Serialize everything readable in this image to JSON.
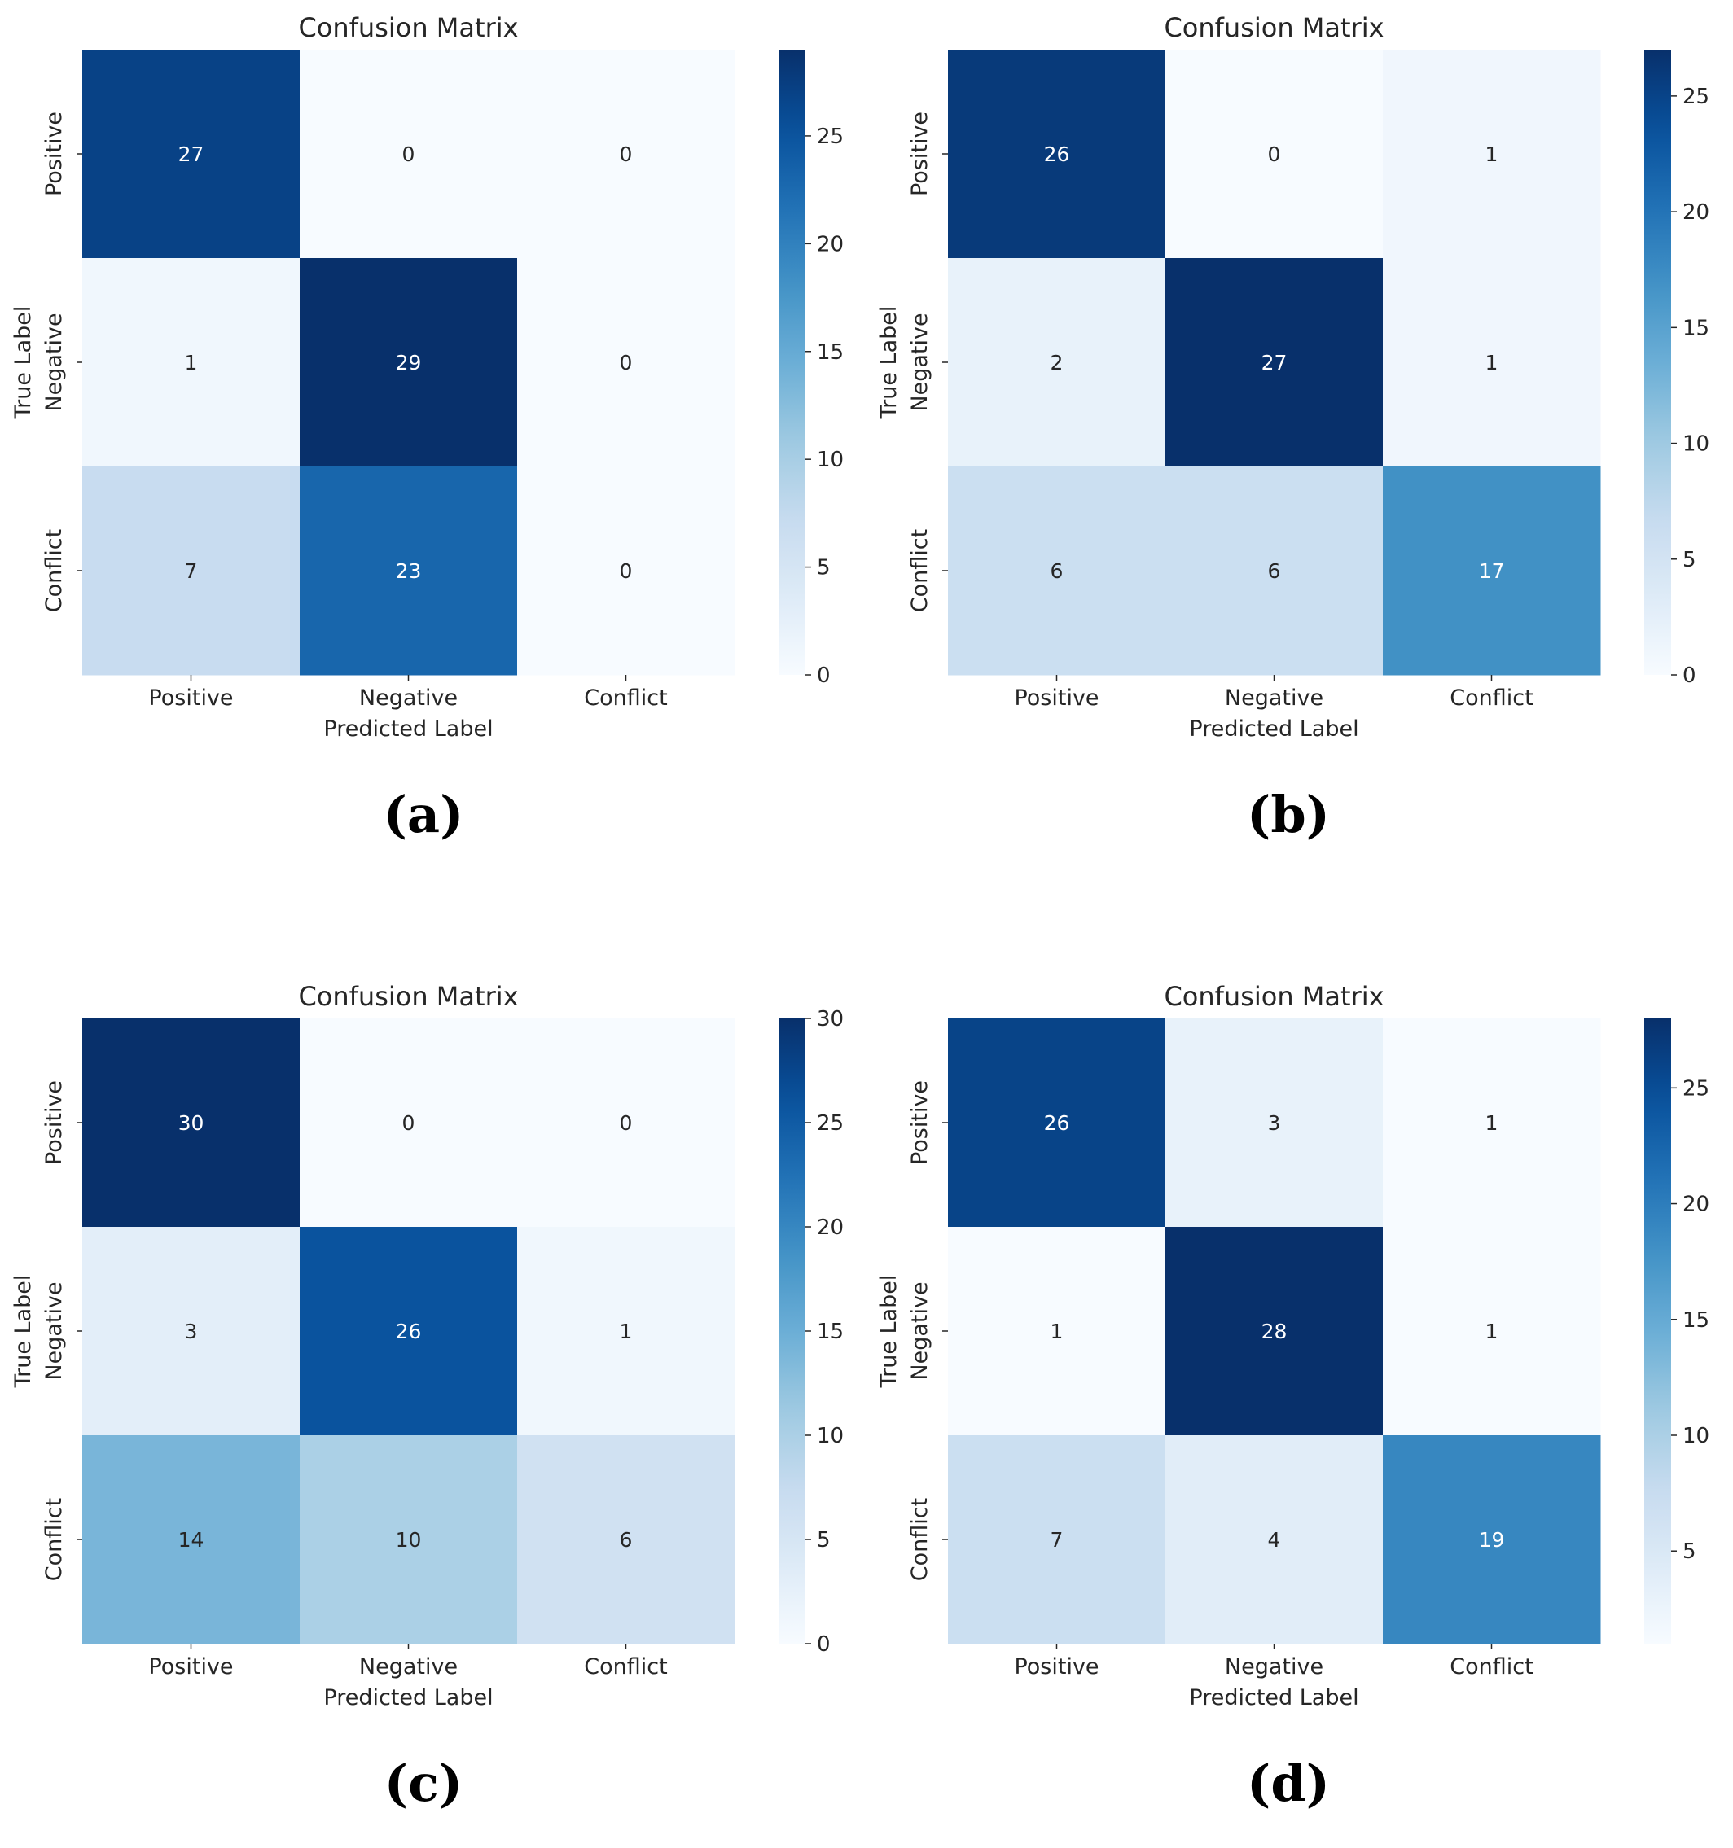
{
  "figure": {
    "panels": [
      {
        "caption": "(a)"
      },
      {
        "caption": "(b)"
      },
      {
        "caption": "(c)"
      },
      {
        "caption": "(d)"
      }
    ]
  },
  "colormap": [
    "#f7fbff",
    "#deebf7",
    "#c6dbef",
    "#9ecae1",
    "#6baed6",
    "#4292c6",
    "#2171b5",
    "#08519c",
    "#08306b"
  ],
  "chart_data": [
    {
      "type": "heatmap",
      "title": "Confusion Matrix",
      "xlabel": "Predicted Label",
      "ylabel": "True Label",
      "x_categories": [
        "Positive",
        "Negative",
        "Conflict"
      ],
      "y_categories": [
        "Positive",
        "Negative",
        "Conflict"
      ],
      "values": [
        [
          27,
          0,
          0
        ],
        [
          1,
          29,
          0
        ],
        [
          7,
          23,
          0
        ]
      ],
      "vmin": 0,
      "vmax": 29,
      "colorbar_ticks": [
        0,
        5,
        10,
        15,
        20,
        25
      ]
    },
    {
      "type": "heatmap",
      "title": "Confusion Matrix",
      "xlabel": "Predicted Label",
      "ylabel": "True Label",
      "x_categories": [
        "Positive",
        "Negative",
        "Conflict"
      ],
      "y_categories": [
        "Positive",
        "Negative",
        "Conflict"
      ],
      "values": [
        [
          26,
          0,
          1
        ],
        [
          2,
          27,
          1
        ],
        [
          6,
          6,
          17
        ]
      ],
      "vmin": 0,
      "vmax": 27,
      "colorbar_ticks": [
        0,
        5,
        10,
        15,
        20,
        25
      ]
    },
    {
      "type": "heatmap",
      "title": "Confusion Matrix",
      "xlabel": "Predicted Label",
      "ylabel": "True Label",
      "x_categories": [
        "Positive",
        "Negative",
        "Conflict"
      ],
      "y_categories": [
        "Positive",
        "Negative",
        "Conflict"
      ],
      "values": [
        [
          30,
          0,
          0
        ],
        [
          3,
          26,
          1
        ],
        [
          14,
          10,
          6
        ]
      ],
      "vmin": 0,
      "vmax": 30,
      "colorbar_ticks": [
        0,
        5,
        10,
        15,
        20,
        25,
        30
      ]
    },
    {
      "type": "heatmap",
      "title": "Confusion Matrix",
      "xlabel": "Predicted Label",
      "ylabel": "True Label",
      "x_categories": [
        "Positive",
        "Negative",
        "Conflict"
      ],
      "y_categories": [
        "Positive",
        "Negative",
        "Conflict"
      ],
      "values": [
        [
          26,
          3,
          1
        ],
        [
          1,
          28,
          1
        ],
        [
          7,
          4,
          19
        ]
      ],
      "vmin": 1,
      "vmax": 28,
      "colorbar_ticks": [
        5,
        10,
        15,
        20,
        25
      ]
    }
  ]
}
